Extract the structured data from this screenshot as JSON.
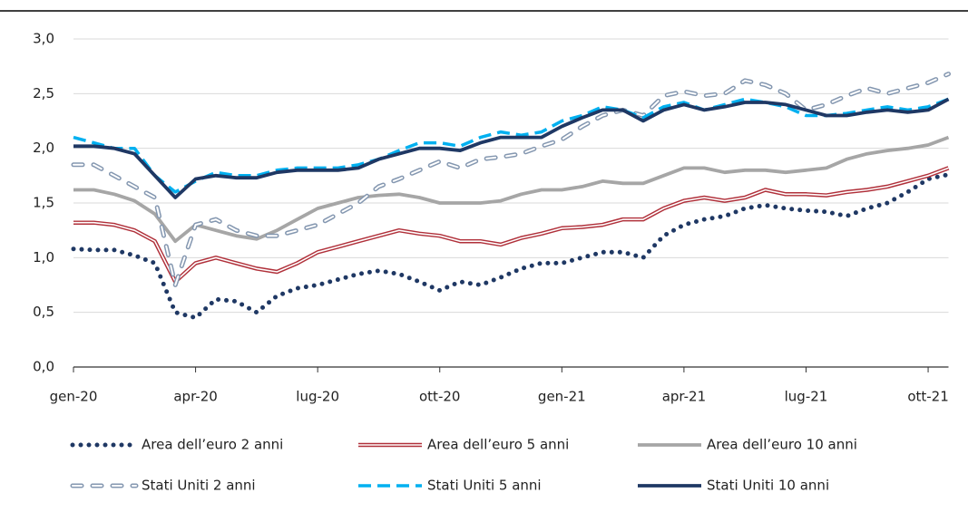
{
  "chart_data": {
    "type": "line",
    "categories": [
      "gen-20",
      null,
      null,
      null,
      null,
      null,
      "apr-20",
      null,
      null,
      null,
      null,
      null,
      "lug-20",
      null,
      null,
      null,
      null,
      null,
      "ott-20",
      null,
      null,
      null,
      null,
      null,
      "gen-21",
      null,
      null,
      null,
      null,
      null,
      "apr-21",
      null,
      null,
      null,
      null,
      null,
      "lug-21",
      null,
      null,
      null,
      null,
      null,
      "ott-21",
      null
    ],
    "ylim": [
      0,
      3
    ],
    "yticks": [
      {
        "value": 0,
        "label": "0,0"
      },
      {
        "value": 0.5,
        "label": "0,5"
      },
      {
        "value": 1,
        "label": "1,0"
      },
      {
        "value": 1.5,
        "label": "1,5"
      },
      {
        "value": 2,
        "label": "2,0"
      },
      {
        "value": 2.5,
        "label": "2,5"
      },
      {
        "value": 3,
        "label": "3,0"
      }
    ],
    "grid": true,
    "series": [
      {
        "name": "Area dell’euro 2 anni",
        "color": "#1f3864",
        "style": "dotted",
        "values": [
          1.08,
          1.07,
          1.07,
          1.02,
          0.95,
          0.5,
          0.45,
          0.62,
          0.6,
          0.5,
          0.65,
          0.72,
          0.75,
          0.8,
          0.85,
          0.88,
          0.85,
          0.78,
          0.7,
          0.78,
          0.75,
          0.82,
          0.9,
          0.95,
          0.95,
          1.0,
          1.05,
          1.05,
          1.0,
          1.2,
          1.3,
          1.35,
          1.38,
          1.45,
          1.48,
          1.45,
          1.43,
          1.42,
          1.38,
          1.45,
          1.5,
          1.6,
          1.72,
          1.76
        ]
      },
      {
        "name": "Area dell’euro 5 anni",
        "color": "#b0303a",
        "style": "double",
        "values": [
          1.32,
          1.32,
          1.3,
          1.25,
          1.15,
          0.78,
          0.95,
          1.0,
          0.95,
          0.9,
          0.87,
          0.95,
          1.05,
          1.1,
          1.15,
          1.2,
          1.25,
          1.22,
          1.2,
          1.15,
          1.15,
          1.12,
          1.18,
          1.22,
          1.27,
          1.28,
          1.3,
          1.35,
          1.35,
          1.45,
          1.52,
          1.55,
          1.52,
          1.55,
          1.62,
          1.58,
          1.58,
          1.57,
          1.6,
          1.62,
          1.65,
          1.7,
          1.75,
          1.82
        ]
      },
      {
        "name": "Area dell’euro 10 anni",
        "color": "#a6a6a6",
        "style": "solid",
        "values": [
          1.62,
          1.62,
          1.58,
          1.52,
          1.4,
          1.15,
          1.3,
          1.25,
          1.2,
          1.17,
          1.25,
          1.35,
          1.45,
          1.5,
          1.55,
          1.57,
          1.58,
          1.55,
          1.5,
          1.5,
          1.5,
          1.52,
          1.58,
          1.62,
          1.62,
          1.65,
          1.7,
          1.68,
          1.68,
          1.75,
          1.82,
          1.82,
          1.78,
          1.8,
          1.8,
          1.78,
          1.8,
          1.82,
          1.9,
          1.95,
          1.98,
          2.0,
          2.03,
          2.1
        ]
      },
      {
        "name": "Stati Uniti 2 anni",
        "color": "#8497b0",
        "style": "dashed-outline",
        "values": [
          1.85,
          1.85,
          1.75,
          1.65,
          1.55,
          0.75,
          1.3,
          1.35,
          1.25,
          1.2,
          1.2,
          1.25,
          1.3,
          1.4,
          1.5,
          1.65,
          1.72,
          1.8,
          1.88,
          1.82,
          1.9,
          1.92,
          1.95,
          2.02,
          2.08,
          2.2,
          2.3,
          2.35,
          2.3,
          2.48,
          2.52,
          2.48,
          2.5,
          2.62,
          2.58,
          2.5,
          2.35,
          2.4,
          2.48,
          2.55,
          2.5,
          2.55,
          2.6,
          2.68
        ]
      },
      {
        "name": "Stati Uniti 5 anni",
        "color": "#00b0f0",
        "style": "dashed",
        "values": [
          2.1,
          2.05,
          2.0,
          2.0,
          1.75,
          1.6,
          1.7,
          1.78,
          1.75,
          1.75,
          1.8,
          1.82,
          1.82,
          1.82,
          1.85,
          1.9,
          1.98,
          2.05,
          2.05,
          2.02,
          2.1,
          2.15,
          2.12,
          2.15,
          2.25,
          2.3,
          2.38,
          2.35,
          2.28,
          2.38,
          2.42,
          2.35,
          2.4,
          2.45,
          2.42,
          2.38,
          2.3,
          2.3,
          2.32,
          2.35,
          2.38,
          2.35,
          2.38,
          2.45
        ]
      },
      {
        "name": "Stati Uniti 10 anni",
        "color": "#1f3864",
        "style": "solid",
        "values": [
          2.02,
          2.02,
          2.0,
          1.95,
          1.75,
          1.55,
          1.72,
          1.75,
          1.73,
          1.73,
          1.78,
          1.8,
          1.8,
          1.8,
          1.82,
          1.9,
          1.95,
          2.0,
          2.0,
          1.98,
          2.05,
          2.1,
          2.1,
          2.1,
          2.2,
          2.28,
          2.35,
          2.35,
          2.25,
          2.35,
          2.4,
          2.35,
          2.38,
          2.42,
          2.42,
          2.4,
          2.35,
          2.3,
          2.3,
          2.33,
          2.35,
          2.33,
          2.35,
          2.45
        ]
      }
    ]
  }
}
